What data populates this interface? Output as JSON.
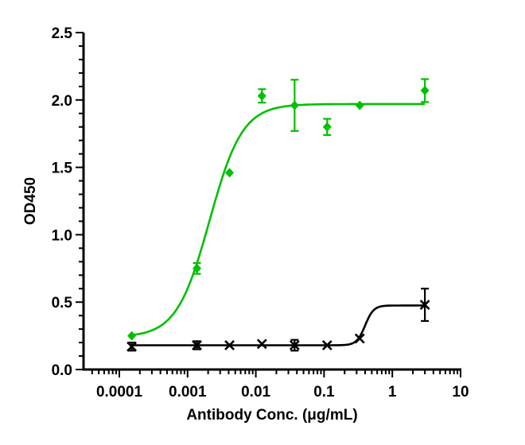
{
  "chart_data": {
    "type": "scatter",
    "title": "",
    "xlabel": "Antibody Conc. (μg/mL)",
    "ylabel": "OD450",
    "xscale": "log",
    "xlim": [
      3e-05,
      10.2
    ],
    "ylim": [
      0,
      2.5
    ],
    "xticks": [
      0.0001,
      0.001,
      0.01,
      0.1,
      1,
      10
    ],
    "xtick_labels": [
      "0.0001",
      "0.001",
      "0.01",
      "0.1",
      "1",
      "10"
    ],
    "yticks": [
      0,
      0.5,
      1,
      1.5,
      2,
      2.5
    ],
    "ytick_labels": [
      "0.0",
      "0.5",
      "1.0",
      "1.5",
      "2.0",
      "2.5"
    ],
    "grid": false,
    "legend": "none",
    "series": [
      {
        "color": "#00c000",
        "marker": "diamond",
        "x": [
          0.000152,
          0.00137,
          0.00412,
          0.0123,
          0.037,
          0.111,
          0.333,
          3
        ],
        "y": [
          0.25,
          0.75,
          1.46,
          2.03,
          1.96,
          1.8,
          1.96,
          2.07
        ],
        "error": [
          0.01,
          0.04,
          0.01,
          0.05,
          0.19,
          0.06,
          0.01,
          0.085
        ],
        "fit": {
          "model": "4PL",
          "bottom": 0.24,
          "top": 1.97,
          "ec50": 0.0021,
          "hill": 1.8
        }
      },
      {
        "color": "#000000",
        "marker": "x",
        "x": [
          0.000152,
          0.00137,
          0.00412,
          0.0123,
          0.037,
          0.111,
          0.333,
          3
        ],
        "y": [
          0.17,
          0.18,
          0.18,
          0.19,
          0.18,
          0.18,
          0.23,
          0.48
        ],
        "error": [
          0.03,
          0.03,
          0.0,
          0.0,
          0.04,
          0.0,
          0.0,
          0.12
        ],
        "fit": {
          "model": "4PL",
          "bottom": 0.18,
          "top": 0.475,
          "ec50": 0.4,
          "hill": 7
        }
      }
    ]
  }
}
